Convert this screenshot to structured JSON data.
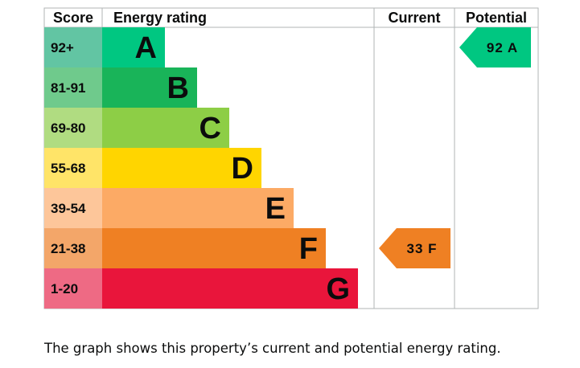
{
  "chart_data": {
    "type": "bar",
    "headers": {
      "score": "Score",
      "rating": "Energy rating",
      "current": "Current",
      "potential": "Potential"
    },
    "bands": [
      {
        "letter": "A",
        "range": "92+",
        "color": "#00c781",
        "score_color": "#62c5a3"
      },
      {
        "letter": "B",
        "range": "81-91",
        "color": "#19b459",
        "score_color": "#6fca8c"
      },
      {
        "letter": "C",
        "range": "69-80",
        "color": "#8dce46",
        "score_color": "#b0dc81"
      },
      {
        "letter": "D",
        "range": "55-68",
        "color": "#ffd500",
        "score_color": "#ffe468"
      },
      {
        "letter": "E",
        "range": "39-54",
        "color": "#fcaa65",
        "score_color": "#fdc69a"
      },
      {
        "letter": "F",
        "range": "21-38",
        "color": "#ef8023",
        "score_color": "#f3a669"
      },
      {
        "letter": "G",
        "range": "1-20",
        "color": "#e9153b",
        "score_color": "#ee6a84"
      }
    ],
    "current": {
      "value": 33,
      "band": "F",
      "label": "33 F",
      "color": "#ef8023"
    },
    "potential": {
      "value": 92,
      "band": "A",
      "label": "92 A",
      "color": "#00c781"
    }
  },
  "caption": "The graph shows this property’s current and potential energy rating."
}
